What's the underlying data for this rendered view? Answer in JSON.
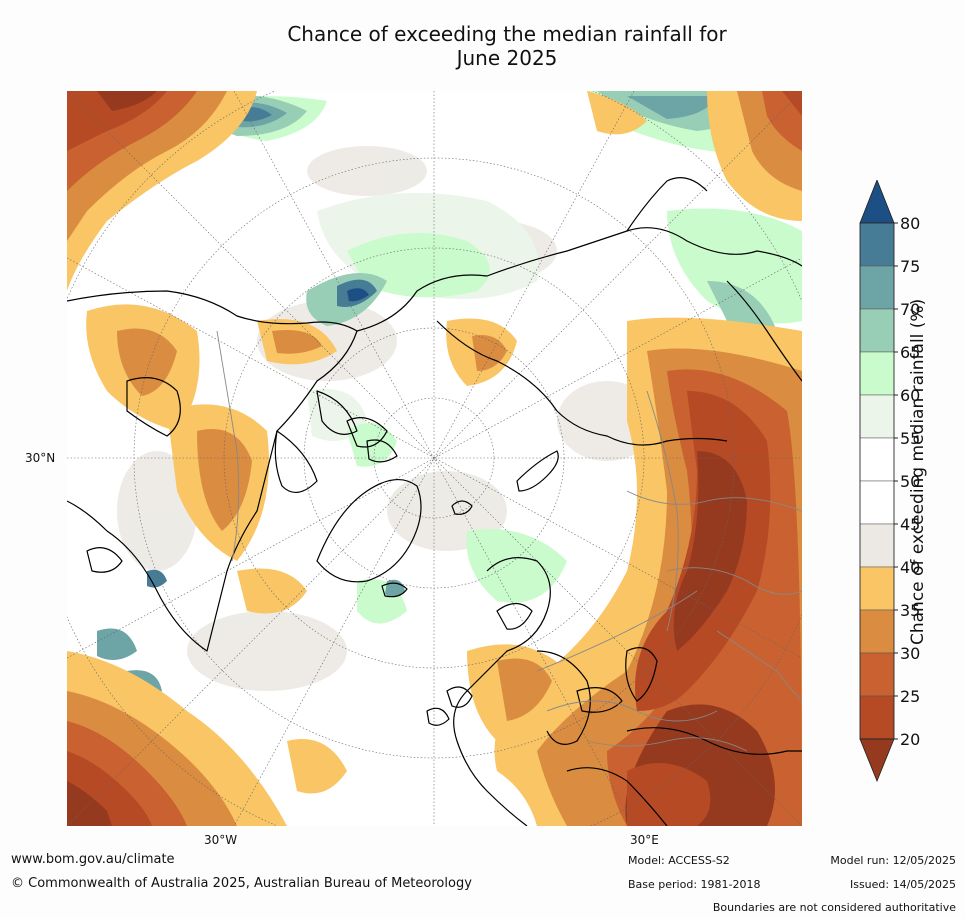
{
  "title": {
    "line1": "Chance of exceeding the median rainfall for",
    "line2": "June 2025"
  },
  "map": {
    "projection": "north-polar-stereographic",
    "lat_label": "30°N",
    "lon_labels": [
      "30°W",
      "30°E"
    ],
    "colors": {
      "c20": "#963a1f",
      "c25": "#b54a25",
      "c30": "#c96230",
      "c35": "#da8c40",
      "c40": "#f9c565",
      "c45": "#ece9e4",
      "c55": "#ebf5ea",
      "c60": "#cafbcc",
      "c65": "#98cdb6",
      "c70": "#6da4a6",
      "c75": "#467c96",
      "c80": "#1c4f84"
    }
  },
  "colorbar": {
    "title": "Chance of exceeding median rainfall (%)",
    "ticks": [
      "80",
      "75",
      "70",
      "65",
      "60",
      "55",
      "50",
      "45",
      "40",
      "35",
      "30",
      "25",
      "20"
    ],
    "colors": [
      "#1c4f84",
      "#467c96",
      "#6da4a6",
      "#98cdb6",
      "#cafbcc",
      "#ebf5ea",
      "#ffffff",
      "#ffffff",
      "#ece9e4",
      "#f9c565",
      "#da8c40",
      "#c96230",
      "#b54a25",
      "#963a1f"
    ]
  },
  "footer": {
    "website": "www.bom.gov.au/climate",
    "copyright": "© Commonwealth of Australia 2025, Australian Bureau of Meteorology",
    "model": "Model: ACCESS-S2",
    "base_period": "Base period: 1981-2018",
    "model_run": "Model run: 12/05/2025",
    "issued": "Issued: 14/05/2025",
    "disclaimer": "Boundaries are not considered authoritative"
  }
}
